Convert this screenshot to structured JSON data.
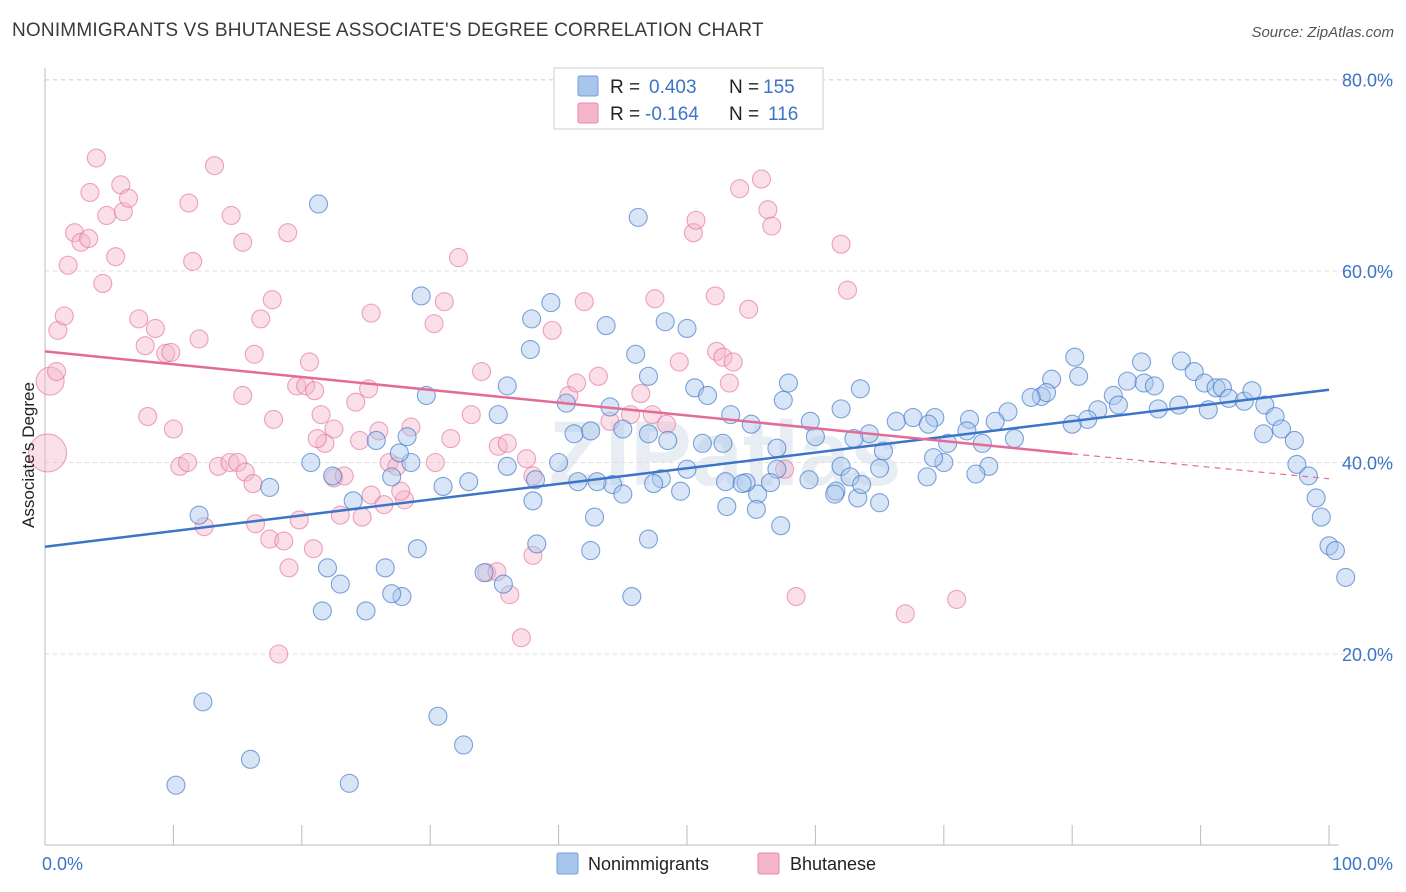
{
  "title": "NONIMMIGRANTS VS BHUTANESE ASSOCIATE'S DEGREE CORRELATION CHART",
  "source": "Source: ZipAtlas.com",
  "watermark": "ZIPatlas",
  "colors": {
    "blue": "#3b74c8",
    "blue_fill": "#a8c6ec",
    "pink": "#e36b97",
    "pink_fill": "#f4b6cb",
    "grid": "#dddddd"
  },
  "legend": {
    "rows": [
      {
        "r_label": "R =",
        "r_value": "0.403",
        "n_label": "N =",
        "n_value": "155"
      },
      {
        "r_label": "R =",
        "r_value": "-0.164",
        "n_label": "N =",
        "n_value": "116"
      }
    ]
  },
  "bottom_legend": [
    "Nonimmigrants",
    "Bhutanese"
  ],
  "chart_data": {
    "type": "scatter",
    "title": "NONIMMIGRANTS VS BHUTANESE ASSOCIATE'S DEGREE CORRELATION CHART",
    "xlabel": "",
    "ylabel": "Associate's Degree",
    "xlim": [
      0,
      100
    ],
    "ylim": [
      0,
      82
    ],
    "x_tick_labels": [
      "0.0%",
      "100.0%"
    ],
    "y_ticks": [
      20,
      40,
      60,
      80
    ],
    "y_tick_labels": [
      "20.0%",
      "40.0%",
      "60.0%",
      "80.0%"
    ],
    "grid": true,
    "legend_position": "top-center",
    "series": [
      {
        "name": "Nonimmigrants",
        "r": 0.403,
        "n": 155,
        "trend": {
          "x": [
            0,
            100
          ],
          "y": [
            31.2,
            47.6
          ]
        },
        "points": [
          [
            21.3,
            67.0
          ],
          [
            46.2,
            65.6
          ],
          [
            29.3,
            57.4
          ],
          [
            39.4,
            56.7
          ],
          [
            37.9,
            55.0
          ],
          [
            43.7,
            54.3
          ],
          [
            48.3,
            54.7
          ],
          [
            50.0,
            54.0
          ],
          [
            37.8,
            51.8
          ],
          [
            46.0,
            51.3
          ],
          [
            47.0,
            49.0
          ],
          [
            36.0,
            48.0
          ],
          [
            40.6,
            46.2
          ],
          [
            35.3,
            45.0
          ],
          [
            29.7,
            47.0
          ],
          [
            44.0,
            45.8
          ],
          [
            50.6,
            47.8
          ],
          [
            51.6,
            47.0
          ],
          [
            53.4,
            45.0
          ],
          [
            57.9,
            48.3
          ],
          [
            57.5,
            46.5
          ],
          [
            63.5,
            47.7
          ],
          [
            62.0,
            45.6
          ],
          [
            59.6,
            44.3
          ],
          [
            55.0,
            44.0
          ],
          [
            45.0,
            43.5
          ],
          [
            41.2,
            43.0
          ],
          [
            42.5,
            43.3
          ],
          [
            47.0,
            43.0
          ],
          [
            48.5,
            42.3
          ],
          [
            52.8,
            42.0
          ],
          [
            57.0,
            41.5
          ],
          [
            60.0,
            42.7
          ],
          [
            64.2,
            43.0
          ],
          [
            63.0,
            42.5
          ],
          [
            66.3,
            44.3
          ],
          [
            67.6,
            44.7
          ],
          [
            69.3,
            44.7
          ],
          [
            68.8,
            44.0
          ],
          [
            72.0,
            44.5
          ],
          [
            75.0,
            45.3
          ],
          [
            70.3,
            42.0
          ],
          [
            71.8,
            43.3
          ],
          [
            75.5,
            42.5
          ],
          [
            77.6,
            46.9
          ],
          [
            78.4,
            48.7
          ],
          [
            80.2,
            51.0
          ],
          [
            80.5,
            49.0
          ],
          [
            82.0,
            45.5
          ],
          [
            83.2,
            47.0
          ],
          [
            84.3,
            48.5
          ],
          [
            85.4,
            50.5
          ],
          [
            85.6,
            48.3
          ],
          [
            86.4,
            48.0
          ],
          [
            88.5,
            50.6
          ],
          [
            89.5,
            49.5
          ],
          [
            90.3,
            48.3
          ],
          [
            91.2,
            47.8
          ],
          [
            91.7,
            47.8
          ],
          [
            92.2,
            46.7
          ],
          [
            93.4,
            46.4
          ],
          [
            94.0,
            47.5
          ],
          [
            95.0,
            46.0
          ],
          [
            95.8,
            44.8
          ],
          [
            96.3,
            43.5
          ],
          [
            97.3,
            42.3
          ],
          [
            97.5,
            39.8
          ],
          [
            98.4,
            38.6
          ],
          [
            99.0,
            36.3
          ],
          [
            99.4,
            34.3
          ],
          [
            100.0,
            31.3
          ],
          [
            100.5,
            30.8
          ],
          [
            101.3,
            28.0
          ],
          [
            94.9,
            43.0
          ],
          [
            90.6,
            45.5
          ],
          [
            88.3,
            46.0
          ],
          [
            86.7,
            45.6
          ],
          [
            83.6,
            46.0
          ],
          [
            81.2,
            44.5
          ],
          [
            80.0,
            44.0
          ],
          [
            78.0,
            47.3
          ],
          [
            76.8,
            46.8
          ],
          [
            74.0,
            44.3
          ],
          [
            73.0,
            42.0
          ],
          [
            73.5,
            39.6
          ],
          [
            72.5,
            38.8
          ],
          [
            70.0,
            40.0
          ],
          [
            69.2,
            40.5
          ],
          [
            68.7,
            38.5
          ],
          [
            65.3,
            41.2
          ],
          [
            65.0,
            39.4
          ],
          [
            62.0,
            39.6
          ],
          [
            62.7,
            38.5
          ],
          [
            61.6,
            37.0
          ],
          [
            59.5,
            38.2
          ],
          [
            57.0,
            39.3
          ],
          [
            55.5,
            36.7
          ],
          [
            56.5,
            37.9
          ],
          [
            54.6,
            37.9
          ],
          [
            53.0,
            38.0
          ],
          [
            51.2,
            42.0
          ],
          [
            50.0,
            39.3
          ],
          [
            48.0,
            38.3
          ],
          [
            44.2,
            37.7
          ],
          [
            45.0,
            36.7
          ],
          [
            41.5,
            38.0
          ],
          [
            38.0,
            36.0
          ],
          [
            40.0,
            40.0
          ],
          [
            36.0,
            39.6
          ],
          [
            33.0,
            38.0
          ],
          [
            31.0,
            37.5
          ],
          [
            28.5,
            40.0
          ],
          [
            27.0,
            38.5
          ],
          [
            24.0,
            36.0
          ],
          [
            22.4,
            38.6
          ],
          [
            20.7,
            40.0
          ],
          [
            17.5,
            37.4
          ],
          [
            12.0,
            34.5
          ],
          [
            22.0,
            29.0
          ],
          [
            21.6,
            24.5
          ],
          [
            23.0,
            27.3
          ],
          [
            25.0,
            24.5
          ],
          [
            26.5,
            29.0
          ],
          [
            27.8,
            26.0
          ],
          [
            27.0,
            26.3
          ],
          [
            29.0,
            31.0
          ],
          [
            34.2,
            28.5
          ],
          [
            35.7,
            27.3
          ],
          [
            38.3,
            31.5
          ],
          [
            42.5,
            30.8
          ],
          [
            45.7,
            26.0
          ],
          [
            43.0,
            38.0
          ],
          [
            42.8,
            34.3
          ],
          [
            47.4,
            37.8
          ],
          [
            49.5,
            37.0
          ],
          [
            53.1,
            35.4
          ],
          [
            55.4,
            35.1
          ],
          [
            57.3,
            33.4
          ],
          [
            61.5,
            36.7
          ],
          [
            63.3,
            36.3
          ],
          [
            65.0,
            35.8
          ],
          [
            63.6,
            37.7
          ],
          [
            10.2,
            6.3
          ],
          [
            12.3,
            15.0
          ],
          [
            16.0,
            9.0
          ],
          [
            23.7,
            6.5
          ],
          [
            30.6,
            13.5
          ],
          [
            32.6,
            10.5
          ],
          [
            54.3,
            37.8
          ],
          [
            25.8,
            42.3
          ],
          [
            27.6,
            41.0
          ],
          [
            28.2,
            42.7
          ],
          [
            47.0,
            32.0
          ],
          [
            38.2,
            38.2
          ]
        ]
      },
      {
        "name": "Bhutanese",
        "r": -0.164,
        "n": 116,
        "trend": {
          "x": [
            0,
            80
          ],
          "y": [
            51.6,
            40.9
          ]
        },
        "trend_dashed": {
          "x": [
            80,
            100
          ],
          "y": [
            40.9,
            38.3
          ]
        },
        "points": [
          [
            0.2,
            41.0
          ],
          [
            0.4,
            48.5
          ],
          [
            0.9,
            49.5
          ],
          [
            1.0,
            53.8
          ],
          [
            1.5,
            55.3
          ],
          [
            1.8,
            60.6
          ],
          [
            2.3,
            64.0
          ],
          [
            2.8,
            63.0
          ],
          [
            3.4,
            63.4
          ],
          [
            3.5,
            68.2
          ],
          [
            4.0,
            71.8
          ],
          [
            4.5,
            58.7
          ],
          [
            4.8,
            65.8
          ],
          [
            5.5,
            61.5
          ],
          [
            5.9,
            69.0
          ],
          [
            6.1,
            66.2
          ],
          [
            6.5,
            67.6
          ],
          [
            7.3,
            55.0
          ],
          [
            7.8,
            52.2
          ],
          [
            8.6,
            54.0
          ],
          [
            8.0,
            44.8
          ],
          [
            9.4,
            51.4
          ],
          [
            9.8,
            51.5
          ],
          [
            10.0,
            43.5
          ],
          [
            11.2,
            67.1
          ],
          [
            11.5,
            61.0
          ],
          [
            12.0,
            52.9
          ],
          [
            13.2,
            71.0
          ],
          [
            14.5,
            65.8
          ],
          [
            15.4,
            63.0
          ],
          [
            16.8,
            55.0
          ],
          [
            17.7,
            57.0
          ],
          [
            15.4,
            47.0
          ],
          [
            16.3,
            51.3
          ],
          [
            18.9,
            64.0
          ],
          [
            17.8,
            44.5
          ],
          [
            19.6,
            48.0
          ],
          [
            20.3,
            48.0
          ],
          [
            20.6,
            50.5
          ],
          [
            21.0,
            47.5
          ],
          [
            21.5,
            45.0
          ],
          [
            22.5,
            43.5
          ],
          [
            24.2,
            46.3
          ],
          [
            25.4,
            55.6
          ],
          [
            25.2,
            47.7
          ],
          [
            26.0,
            43.3
          ],
          [
            24.5,
            42.3
          ],
          [
            26.8,
            40.0
          ],
          [
            27.4,
            39.6
          ],
          [
            28.0,
            36.1
          ],
          [
            30.3,
            54.5
          ],
          [
            31.1,
            56.8
          ],
          [
            32.2,
            61.4
          ],
          [
            34.0,
            49.5
          ],
          [
            33.2,
            45.0
          ],
          [
            35.3,
            41.7
          ],
          [
            36.0,
            42.0
          ],
          [
            37.5,
            40.4
          ],
          [
            38.0,
            38.6
          ],
          [
            39.5,
            53.8
          ],
          [
            40.8,
            47.0
          ],
          [
            41.4,
            48.3
          ],
          [
            42.0,
            56.8
          ],
          [
            43.1,
            49.0
          ],
          [
            44.0,
            44.3
          ],
          [
            45.6,
            45.0
          ],
          [
            46.4,
            47.2
          ],
          [
            47.3,
            45.0
          ],
          [
            47.5,
            57.1
          ],
          [
            48.4,
            44.0
          ],
          [
            49.4,
            50.5
          ],
          [
            50.5,
            64.0
          ],
          [
            50.7,
            65.3
          ],
          [
            52.2,
            57.4
          ],
          [
            52.3,
            51.6
          ],
          [
            52.8,
            51.0
          ],
          [
            53.3,
            48.3
          ],
          [
            53.6,
            50.5
          ],
          [
            54.1,
            68.6
          ],
          [
            54.8,
            56.0
          ],
          [
            55.8,
            69.6
          ],
          [
            56.3,
            66.4
          ],
          [
            56.6,
            64.7
          ],
          [
            57.6,
            39.3
          ],
          [
            58.5,
            26.0
          ],
          [
            62.0,
            62.8
          ],
          [
            62.5,
            58.0
          ],
          [
            67.0,
            24.2
          ],
          [
            71.0,
            25.7
          ],
          [
            10.5,
            39.6
          ],
          [
            11.1,
            40.0
          ],
          [
            12.4,
            33.3
          ],
          [
            13.5,
            39.6
          ],
          [
            14.4,
            40.0
          ],
          [
            15.0,
            40.0
          ],
          [
            15.6,
            39.0
          ],
          [
            16.2,
            37.8
          ],
          [
            16.4,
            33.6
          ],
          [
            17.5,
            32.0
          ],
          [
            18.6,
            31.8
          ],
          [
            19.0,
            29.0
          ],
          [
            20.9,
            31.0
          ],
          [
            21.8,
            42.0
          ],
          [
            22.5,
            38.4
          ],
          [
            23.3,
            38.6
          ],
          [
            24.7,
            34.3
          ],
          [
            25.4,
            36.6
          ],
          [
            26.4,
            35.6
          ],
          [
            27.7,
            37.0
          ],
          [
            28.5,
            43.7
          ],
          [
            30.4,
            40.0
          ],
          [
            31.6,
            42.5
          ],
          [
            34.4,
            28.5
          ],
          [
            35.2,
            28.6
          ],
          [
            36.2,
            26.2
          ],
          [
            37.1,
            21.7
          ],
          [
            38.0,
            30.3
          ],
          [
            18.2,
            20.0
          ],
          [
            19.8,
            34.0
          ],
          [
            21.2,
            42.5
          ],
          [
            23.0,
            34.5
          ]
        ]
      }
    ]
  }
}
